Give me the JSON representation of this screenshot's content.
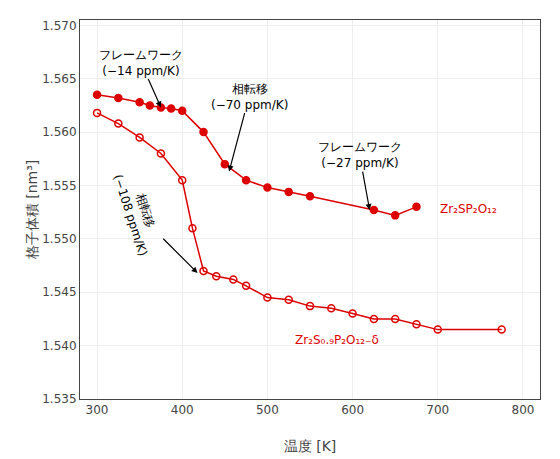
{
  "chart_data": {
    "type": "line",
    "xlabel": "温度 [K]",
    "ylabel": "格子体積 [nm³]",
    "xlim": [
      280,
      820
    ],
    "ylim": [
      1.535,
      1.5705
    ],
    "xticks": [
      300,
      400,
      500,
      600,
      700,
      800
    ],
    "yticks": [
      1.535,
      {
        "value": 1.54,
        "label": "1.540"
      },
      1.545,
      {
        "value": 1.55,
        "label": "1.550"
      },
      1.555,
      {
        "value": 1.56,
        "label": "1.560"
      },
      1.565,
      {
        "value": 1.57,
        "label": "1.570"
      }
    ],
    "grid": true,
    "series": [
      {
        "color": "#dd0000",
        "marker": "filled",
        "x": [
          300,
          325,
          350,
          362,
          375,
          387,
          400,
          425,
          450,
          475,
          500,
          525,
          550,
          625,
          650,
          675
        ],
        "values": [
          1.5635,
          1.5632,
          1.5628,
          1.5625,
          1.5623,
          1.5622,
          1.562,
          1.56,
          1.557,
          1.5555,
          1.5548,
          1.5544,
          1.554,
          1.5527,
          1.5522,
          1.553
        ]
      },
      {
        "color": "#dd0000",
        "marker": "open",
        "x": [
          300,
          325,
          350,
          375,
          400,
          412,
          425,
          440,
          460,
          475,
          500,
          525,
          550,
          575,
          600,
          625,
          650,
          675,
          700,
          775
        ],
        "values": [
          1.5618,
          1.5608,
          1.5595,
          1.558,
          1.5555,
          1.551,
          1.547,
          1.5465,
          1.5462,
          1.5456,
          1.5445,
          1.5443,
          1.5437,
          1.5435,
          1.543,
          1.5425,
          1.5425,
          1.542,
          1.5415,
          1.5415
        ]
      }
    ],
    "annotations": [
      {
        "text": "Zr₂SP₂O₁₂",
        "x": 700,
        "y": 1.5528,
        "color": "#dd0000"
      },
      {
        "text": "Zr₂S₀.₉P₂O₁₂₋δ",
        "x": 530,
        "y": 1.5405,
        "color": "#dd0000"
      },
      {
        "text": "フレームワーク\n(−14 ppm/K)",
        "x": 375,
        "y": 1.5623,
        "arrow": true
      },
      {
        "text": "相転移\n(−70 ppm/K)",
        "x": 455,
        "y": 1.5563,
        "arrow": true
      },
      {
        "text": "フレームワーク\n(−27 ppm/K)",
        "x": 620,
        "y": 1.5527,
        "arrow": true
      },
      {
        "text": "相転移\n(−108 ppm/K)",
        "x": 418,
        "y": 1.5468,
        "arrow": true
      }
    ]
  }
}
